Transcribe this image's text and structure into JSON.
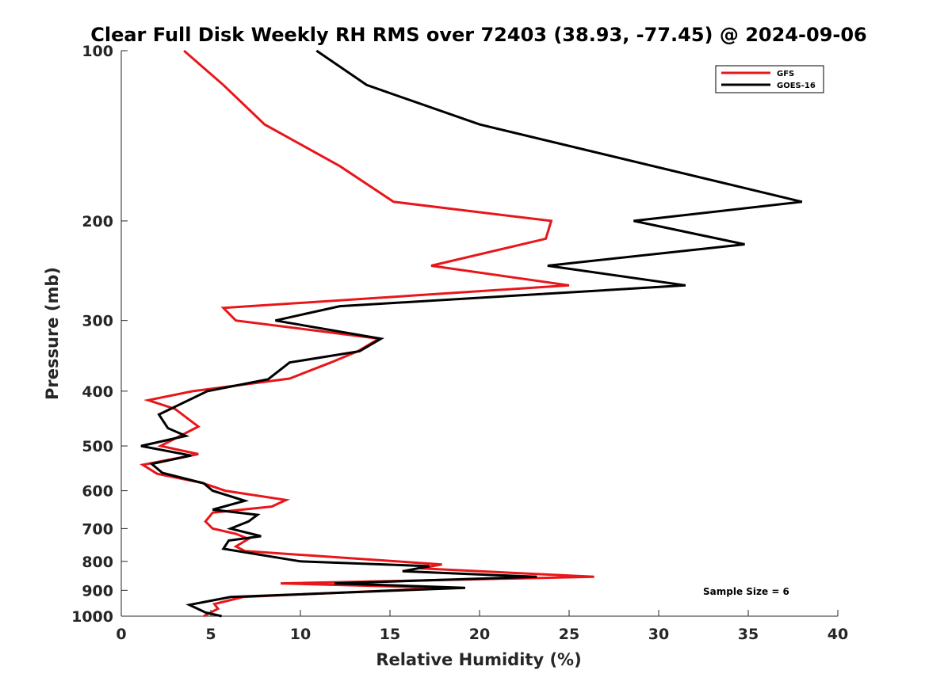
{
  "chart_data": {
    "type": "line",
    "title": "Clear Full Disk Weekly RH RMS over 72403 (38.93, -77.45) @ 2024-09-06",
    "xlabel": "Relative Humidity (%)",
    "ylabel": "Pressure (mb)",
    "xlim": [
      0,
      40
    ],
    "ylim": [
      100,
      1000
    ],
    "y_scale": "log",
    "y_reversed": true,
    "x_ticks": [
      "0",
      "5",
      "10",
      "15",
      "20",
      "25",
      "30",
      "35",
      "40"
    ],
    "y_ticks": [
      "100",
      "200",
      "300",
      "400",
      "500",
      "600",
      "700",
      "800",
      "900",
      "1000"
    ],
    "grid": false,
    "legend_position": "top-right",
    "annotation": "Sample Size = 6",
    "series": [
      {
        "name": "GFS",
        "color": "#e8161a",
        "points": [
          [
            3.5,
            100
          ],
          [
            5.7,
            115
          ],
          [
            8.0,
            135
          ],
          [
            12.2,
            160
          ],
          [
            15.2,
            185
          ],
          [
            24.0,
            200
          ],
          [
            23.7,
            215
          ],
          [
            17.3,
            240
          ],
          [
            25.0,
            260
          ],
          [
            5.7,
            285
          ],
          [
            6.4,
            300
          ],
          [
            14.4,
            323
          ],
          [
            13.2,
            340
          ],
          [
            11.7,
            356
          ],
          [
            9.4,
            380
          ],
          [
            4.0,
            400
          ],
          [
            1.5,
            415
          ],
          [
            3.0,
            430
          ],
          [
            4.3,
            462
          ],
          [
            2.2,
            500
          ],
          [
            4.3,
            517
          ],
          [
            1.2,
            540
          ],
          [
            2.0,
            560
          ],
          [
            4.5,
            581
          ],
          [
            5.8,
            600
          ],
          [
            9.2,
            623
          ],
          [
            8.4,
            640
          ],
          [
            5.1,
            656
          ],
          [
            4.7,
            680
          ],
          [
            5.1,
            700
          ],
          [
            6.4,
            715
          ],
          [
            7.1,
            730
          ],
          [
            6.4,
            753
          ],
          [
            6.9,
            767
          ],
          [
            17.9,
            810
          ],
          [
            16.7,
            823
          ],
          [
            26.4,
            852
          ],
          [
            8.9,
            875
          ],
          [
            18.2,
            891
          ],
          [
            6.8,
            925
          ],
          [
            5.2,
            952
          ],
          [
            5.4,
            970
          ],
          [
            4.6,
            1000
          ]
        ]
      },
      {
        "name": "GOES-16",
        "color": "#000000",
        "points": [
          [
            10.9,
            100
          ],
          [
            13.7,
            115
          ],
          [
            20.0,
            135
          ],
          [
            38.0,
            185
          ],
          [
            28.6,
            200
          ],
          [
            34.8,
            220
          ],
          [
            23.8,
            240
          ],
          [
            31.5,
            260
          ],
          [
            12.2,
            283
          ],
          [
            8.6,
            300
          ],
          [
            14.5,
            323
          ],
          [
            13.3,
            340
          ],
          [
            9.4,
            356
          ],
          [
            8.2,
            381
          ],
          [
            4.8,
            400
          ],
          [
            2.1,
            440
          ],
          [
            2.6,
            465
          ],
          [
            3.6,
            480
          ],
          [
            1.1,
            500
          ],
          [
            3.9,
            520
          ],
          [
            1.7,
            538
          ],
          [
            2.3,
            558
          ],
          [
            4.6,
            582
          ],
          [
            5.1,
            600
          ],
          [
            6.9,
            625
          ],
          [
            5.1,
            648
          ],
          [
            7.6,
            662
          ],
          [
            7.1,
            680
          ],
          [
            6.1,
            700
          ],
          [
            7.8,
            722
          ],
          [
            6.0,
            735
          ],
          [
            5.7,
            760
          ],
          [
            10.0,
            800
          ],
          [
            17.2,
            816
          ],
          [
            15.7,
            833
          ],
          [
            23.2,
            852
          ],
          [
            11.9,
            875
          ],
          [
            19.2,
            891
          ],
          [
            6.1,
            925
          ],
          [
            3.8,
            955
          ],
          [
            4.7,
            985
          ],
          [
            5.6,
            1000
          ]
        ]
      }
    ]
  }
}
